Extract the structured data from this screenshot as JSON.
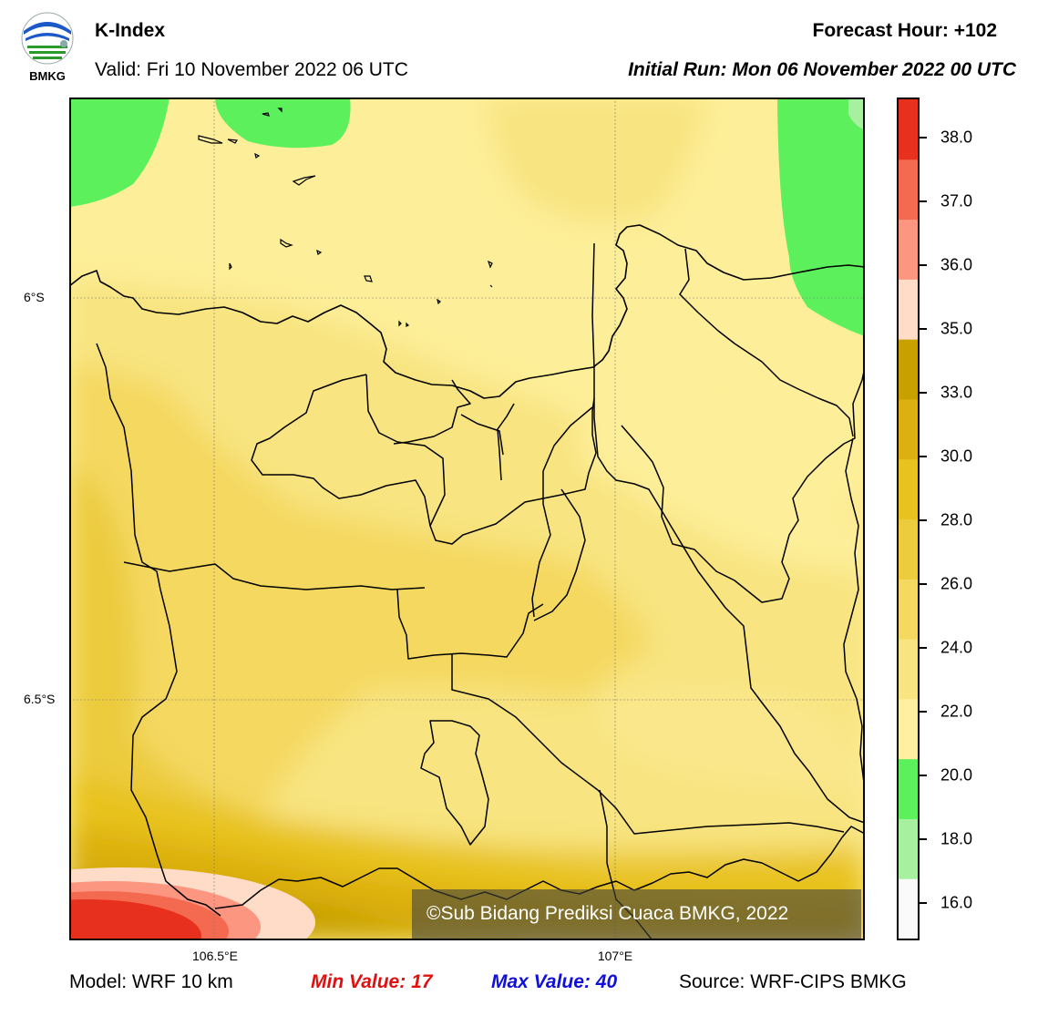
{
  "header": {
    "logo_text": "BMKG",
    "title": "K-Index",
    "valid": "Valid: Fri 10 November 2022 06 UTC",
    "forecast_hour": "Forecast Hour: +102",
    "initial_run": "Initial Run: Mon 06 November 2022 00 UTC"
  },
  "map": {
    "lat_labels": [
      "6°S",
      "6.5°S"
    ],
    "lon_labels": [
      "106.5°E",
      "107°E"
    ],
    "watermark": "©Sub Bidang Prediksi Cuaca BMKG, 2022"
  },
  "colorbar": {
    "labels": [
      "38.0",
      "37.0",
      "36.0",
      "35.0",
      "33.0",
      "30.0",
      "28.0",
      "26.0",
      "24.0",
      "22.0",
      "20.0",
      "18.0",
      "16.0"
    ],
    "colors": [
      "#fafafa",
      "#a6f0a0",
      "#5cf05c",
      "#fef0a0",
      "#f8e480",
      "#f4d860",
      "#eccb3c",
      "#e8c21e",
      "#dcb010",
      "#c8a000",
      "#ffdcc8",
      "#fc9680",
      "#f46a50",
      "#e8301e"
    ],
    "accent_colors": {
      "min": "#e01010",
      "max": "#1010d8"
    }
  },
  "footer": {
    "model": "Model: WRF 10 km",
    "min_value": "Min Value: 17",
    "max_value": "Max Value: 40",
    "source": "Source: WRF-CIPS BMKG"
  }
}
